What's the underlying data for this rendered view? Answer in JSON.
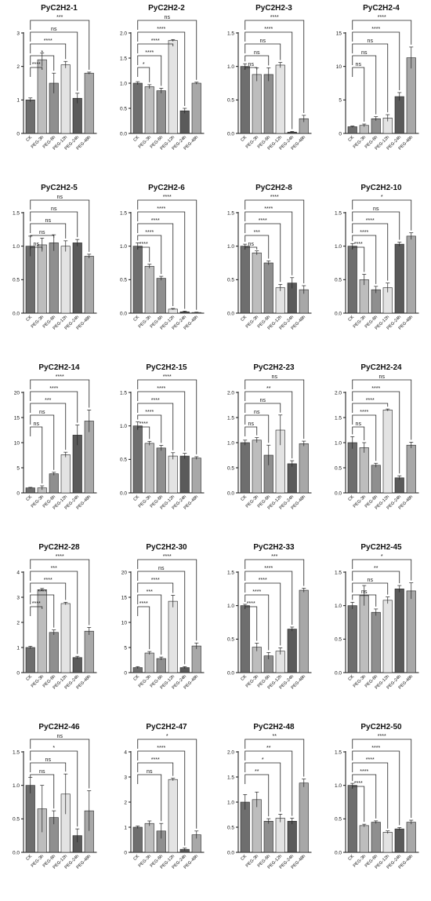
{
  "chart_data": [
    {
      "type": "bar",
      "title": "PyC2H2-1",
      "categories": [
        "CK",
        "PEG-3h",
        "PEG-6h",
        "PEG-12h",
        "PEG-24h",
        "PEG-48h"
      ],
      "values": [
        1.0,
        2.2,
        1.5,
        2.05,
        1.05,
        1.8
      ],
      "errors": [
        0.06,
        0.2,
        0.3,
        0.1,
        0.15,
        0.03
      ],
      "ylim": [
        0,
        3
      ],
      "yticks": [
        "0",
        "1",
        "2",
        "3"
      ],
      "significance": [
        "****",
        "*",
        "****",
        "ns",
        "***"
      ]
    },
    {
      "type": "bar",
      "title": "PyC2H2-2",
      "categories": [
        "CK",
        "PEG-3h",
        "PEG-6h",
        "PEG-12h",
        "PEG-24h",
        "PEG-48h"
      ],
      "values": [
        1.0,
        0.93,
        0.85,
        1.85,
        0.45,
        1.0
      ],
      "errors": [
        0.03,
        0.04,
        0.05,
        0.02,
        0.05,
        0.02
      ],
      "ylim": [
        0,
        2.0
      ],
      "yticks": [
        "0.0",
        "0.5",
        "1.0",
        "1.5",
        "2.0"
      ],
      "significance": [
        "*",
        "****",
        "****",
        "****",
        "ns"
      ]
    },
    {
      "type": "bar",
      "title": "PyC2H2-3",
      "categories": [
        "CK",
        "PEG-3h",
        "PEG-6h",
        "PEG-12h",
        "PEG-24h",
        "PEG-48h"
      ],
      "values": [
        1.0,
        0.88,
        0.88,
        1.02,
        0.02,
        0.22
      ],
      "errors": [
        0.04,
        0.1,
        0.1,
        0.04,
        0.01,
        0.05
      ],
      "ylim": [
        0,
        1.5
      ],
      "yticks": [
        "0.0",
        "0.5",
        "1.0",
        "1.5"
      ],
      "significance": [
        "ns",
        "ns",
        "ns",
        "****",
        "****"
      ]
    },
    {
      "type": "bar",
      "title": "PyC2H2-4",
      "categories": [
        "CK",
        "PEG-3h",
        "PEG-6h",
        "PEG-12h",
        "PEG-24h",
        "PEG-48h"
      ],
      "values": [
        1.0,
        1.2,
        2.2,
        2.3,
        5.5,
        11.3
      ],
      "errors": [
        0.1,
        0.2,
        0.3,
        0.5,
        0.6,
        1.6
      ],
      "ylim": [
        0,
        15
      ],
      "yticks": [
        "0",
        "5",
        "10",
        "15"
      ],
      "significance": [
        "ns",
        "ns",
        "ns",
        "****",
        "****"
      ]
    },
    {
      "type": "bar",
      "title": "PyC2H2-5",
      "categories": [
        "CK",
        "PEG-3h",
        "PEG-6h",
        "PEG-12h",
        "PEG-24h",
        "PEG-48h"
      ],
      "values": [
        1.0,
        1.02,
        1.05,
        1.0,
        1.05,
        0.85
      ],
      "errors": [
        0.15,
        0.1,
        0.12,
        0.08,
        0.05,
        0.03
      ],
      "ylim": [
        0,
        1.5
      ],
      "yticks": [
        "0.0",
        "0.5",
        "1.0",
        "1.5"
      ],
      "significance": [
        "ns",
        "ns",
        "ns",
        "ns",
        "ns"
      ]
    },
    {
      "type": "bar",
      "title": "PyC2H2-6",
      "categories": [
        "CK",
        "PEG-3h",
        "PEG-6h",
        "PEG-12h",
        "PEG-24h",
        "PEG-48h"
      ],
      "values": [
        1.0,
        0.7,
        0.52,
        0.06,
        0.02,
        0.01
      ],
      "errors": [
        0.05,
        0.03,
        0.03,
        0.01,
        0.01,
        0.005
      ],
      "ylim": [
        0,
        1.5
      ],
      "yticks": [
        "0.0",
        "0.5",
        "1.0",
        "1.5"
      ],
      "significance": [
        "****",
        "****",
        "****",
        "****",
        "****"
      ]
    },
    {
      "type": "bar",
      "title": "PyC2H2-8",
      "categories": [
        "CK",
        "PEG-3h",
        "PEG-6h",
        "PEG-12h",
        "PEG-24h",
        "PEG-48h"
      ],
      "values": [
        1.0,
        0.9,
        0.75,
        0.38,
        0.45,
        0.35
      ],
      "errors": [
        0.03,
        0.03,
        0.03,
        0.05,
        0.08,
        0.06
      ],
      "ylim": [
        0,
        1.5
      ],
      "yticks": [
        "0.0",
        "0.5",
        "1.0",
        "1.5"
      ],
      "significance": [
        "ns",
        "***",
        "****",
        "****",
        "****"
      ]
    },
    {
      "type": "bar",
      "title": "PyC2H2-10",
      "categories": [
        "CK",
        "PEG-3h",
        "PEG-6h",
        "PEG-12h",
        "PEG-24h",
        "PEG-48h"
      ],
      "values": [
        1.0,
        0.5,
        0.35,
        0.38,
        1.03,
        1.15
      ],
      "errors": [
        0.04,
        0.08,
        0.05,
        0.07,
        0.03,
        0.05
      ],
      "ylim": [
        0,
        1.5
      ],
      "yticks": [
        "0.0",
        "0.5",
        "1.0",
        "1.5"
      ],
      "significance": [
        "****",
        "****",
        "****",
        "ns",
        "*"
      ]
    },
    {
      "type": "bar",
      "title": "PyC2H2-14",
      "categories": [
        "CK",
        "PEG-3h",
        "PEG-6h",
        "PEG-12h",
        "PEG-24h",
        "PEG-48h"
      ],
      "values": [
        1.0,
        1.0,
        3.8,
        7.6,
        11.5,
        14.3
      ],
      "errors": [
        0.1,
        0.4,
        0.3,
        0.5,
        2.0,
        2.2
      ],
      "ylim": [
        0,
        20
      ],
      "yticks": [
        "0",
        "5",
        "10",
        "15",
        "20"
      ],
      "significance": [
        "ns",
        "ns",
        "***",
        "****",
        "****"
      ]
    },
    {
      "type": "bar",
      "title": "PyC2H2-15",
      "categories": [
        "CK",
        "PEG-3h",
        "PEG-6h",
        "PEG-12h",
        "PEG-24h",
        "PEG-48h"
      ],
      "values": [
        1.0,
        0.74,
        0.67,
        0.55,
        0.55,
        0.52
      ],
      "errors": [
        0.06,
        0.03,
        0.04,
        0.05,
        0.04,
        0.02
      ],
      "ylim": [
        0,
        1.5
      ],
      "yticks": [
        "0.0",
        "0.5",
        "1.0",
        "1.5"
      ],
      "significance": [
        "****",
        "****",
        "****",
        "****",
        "****"
      ]
    },
    {
      "type": "bar",
      "title": "PyC2H2-23",
      "categories": [
        "CK",
        "PEG-3h",
        "PEG-6h",
        "PEG-12h",
        "PEG-24h",
        "PEG-48h"
      ],
      "values": [
        1.0,
        1.05,
        0.75,
        1.25,
        0.58,
        0.98
      ],
      "errors": [
        0.05,
        0.05,
        0.2,
        0.3,
        0.06,
        0.05
      ],
      "ylim": [
        0,
        2.0
      ],
      "yticks": [
        "0.0",
        "0.5",
        "1.0",
        "1.5",
        "2.0"
      ],
      "significance": [
        "ns",
        "ns",
        "ns",
        "**",
        "ns"
      ]
    },
    {
      "type": "bar",
      "title": "PyC2H2-24",
      "categories": [
        "CK",
        "PEG-3h",
        "PEG-6h",
        "PEG-12h",
        "PEG-24h",
        "PEG-48h"
      ],
      "values": [
        1.0,
        0.9,
        0.55,
        1.65,
        0.3,
        0.95
      ],
      "errors": [
        0.12,
        0.1,
        0.04,
        0.02,
        0.04,
        0.06
      ],
      "ylim": [
        0,
        2.0
      ],
      "yticks": [
        "0.0",
        "0.5",
        "1.0",
        "1.5",
        "2.0"
      ],
      "significance": [
        "ns",
        "****",
        "****",
        "****",
        "ns"
      ]
    },
    {
      "type": "bar",
      "title": "PyC2H2-28",
      "categories": [
        "CK",
        "PEG-3h",
        "PEG-6h",
        "PEG-12h",
        "PEG-24h",
        "PEG-48h"
      ],
      "values": [
        1.0,
        3.3,
        1.6,
        2.75,
        0.6,
        1.65
      ],
      "errors": [
        0.05,
        0.05,
        0.1,
        0.05,
        0.05,
        0.15
      ],
      "ylim": [
        0,
        4
      ],
      "yticks": [
        "0",
        "1",
        "2",
        "3",
        "4"
      ],
      "significance": [
        "****",
        "****",
        "****",
        "***",
        "****"
      ]
    },
    {
      "type": "bar",
      "title": "PyC2H2-30",
      "categories": [
        "CK",
        "PEG-3h",
        "PEG-6h",
        "PEG-12h",
        "PEG-24h",
        "PEG-48h"
      ],
      "values": [
        1.0,
        3.9,
        2.8,
        14.2,
        1.0,
        5.3
      ],
      "errors": [
        0.2,
        0.3,
        0.3,
        1.2,
        0.2,
        0.6
      ],
      "ylim": [
        0,
        20
      ],
      "yticks": [
        "0",
        "5",
        "10",
        "15",
        "20"
      ],
      "significance": [
        "****",
        "***",
        "****",
        "ns",
        "****"
      ]
    },
    {
      "type": "bar",
      "title": "PyC2H2-33",
      "categories": [
        "CK",
        "PEG-3h",
        "PEG-6h",
        "PEG-12h",
        "PEG-24h",
        "PEG-48h"
      ],
      "values": [
        1.0,
        0.38,
        0.25,
        0.32,
        0.65,
        1.23
      ],
      "errors": [
        0.02,
        0.06,
        0.05,
        0.05,
        0.03,
        0.03
      ],
      "ylim": [
        0,
        1.5
      ],
      "yticks": [
        "0.0",
        "0.5",
        "1.0",
        "1.5"
      ],
      "significance": [
        "****",
        "****",
        "****",
        "****",
        "***"
      ]
    },
    {
      "type": "bar",
      "title": "PyC2H2-45",
      "categories": [
        "CK",
        "PEG-3h",
        "PEG-6h",
        "PEG-12h",
        "PEG-24h",
        "PEG-48h"
      ],
      "values": [
        1.0,
        1.15,
        0.9,
        1.08,
        1.25,
        1.22
      ],
      "errors": [
        0.05,
        0.15,
        0.05,
        0.05,
        0.05,
        0.12
      ],
      "ylim": [
        0,
        1.5
      ],
      "yticks": [
        "0.0",
        "0.5",
        "1.0",
        "1.5"
      ],
      "significance": [
        "ns",
        "ns",
        "**",
        "*"
      ]
    },
    {
      "type": "bar",
      "title": "PyC2H2-46",
      "categories": [
        "CK",
        "PEG-3h",
        "PEG-6h",
        "PEG-12h",
        "PEG-24h",
        "PEG-48h"
      ],
      "values": [
        1.0,
        0.65,
        0.52,
        0.87,
        0.25,
        0.62
      ],
      "errors": [
        0.12,
        0.35,
        0.1,
        0.3,
        0.1,
        0.3
      ],
      "ylim": [
        0,
        1.5
      ],
      "yticks": [
        "0.0",
        "0.5",
        "1.0",
        "1.5"
      ],
      "significance": [
        "ns",
        "ns",
        "*",
        "ns"
      ]
    },
    {
      "type": "bar",
      "title": "PyC2H2-47",
      "categories": [
        "CK",
        "PEG-3h",
        "PEG-6h",
        "PEG-12h",
        "PEG-24h",
        "PEG-48h"
      ],
      "values": [
        1.0,
        1.15,
        0.85,
        2.9,
        0.12,
        0.7
      ],
      "errors": [
        0.05,
        0.1,
        0.3,
        0.05,
        0.05,
        0.15
      ],
      "ylim": [
        0,
        4
      ],
      "yticks": [
        "0",
        "1",
        "2",
        "3",
        "4"
      ],
      "significance": [
        "ns",
        "****",
        "****",
        "*"
      ]
    },
    {
      "type": "bar",
      "title": "PyC2H2-48",
      "categories": [
        "CK",
        "PEG-3h",
        "PEG-6h",
        "PEG-12h",
        "PEG-24h",
        "PEG-48h"
      ],
      "values": [
        1.0,
        1.05,
        0.62,
        0.68,
        0.62,
        1.38
      ],
      "errors": [
        0.15,
        0.15,
        0.05,
        0.08,
        0.06,
        0.08
      ],
      "ylim": [
        0,
        2.0
      ],
      "yticks": [
        "0.0",
        "0.5",
        "1.0",
        "1.5",
        "2.0"
      ],
      "significance": [
        "**",
        "*",
        "**",
        "**"
      ]
    },
    {
      "type": "bar",
      "title": "PyC2H2-50",
      "categories": [
        "CK",
        "PEG-3h",
        "PEG-6h",
        "PEG-12h",
        "PEG-24h",
        "PEG-48h"
      ],
      "values": [
        1.0,
        0.4,
        0.45,
        0.3,
        0.35,
        0.45
      ],
      "errors": [
        0.03,
        0.02,
        0.02,
        0.02,
        0.02,
        0.03
      ],
      "ylim": [
        0,
        1.5
      ],
      "yticks": [
        "0.0",
        "0.5",
        "1.0",
        "1.5"
      ],
      "significance": [
        "****",
        "****",
        "****",
        "****",
        "****"
      ]
    }
  ],
  "colors": {
    "bars": [
      "#6e6e6e",
      "#bdbdbd",
      "#8f8f8f",
      "#e3e3e3",
      "#5a5a5a",
      "#a8a8a8"
    ],
    "axis": "#111111",
    "text": "#111111"
  }
}
